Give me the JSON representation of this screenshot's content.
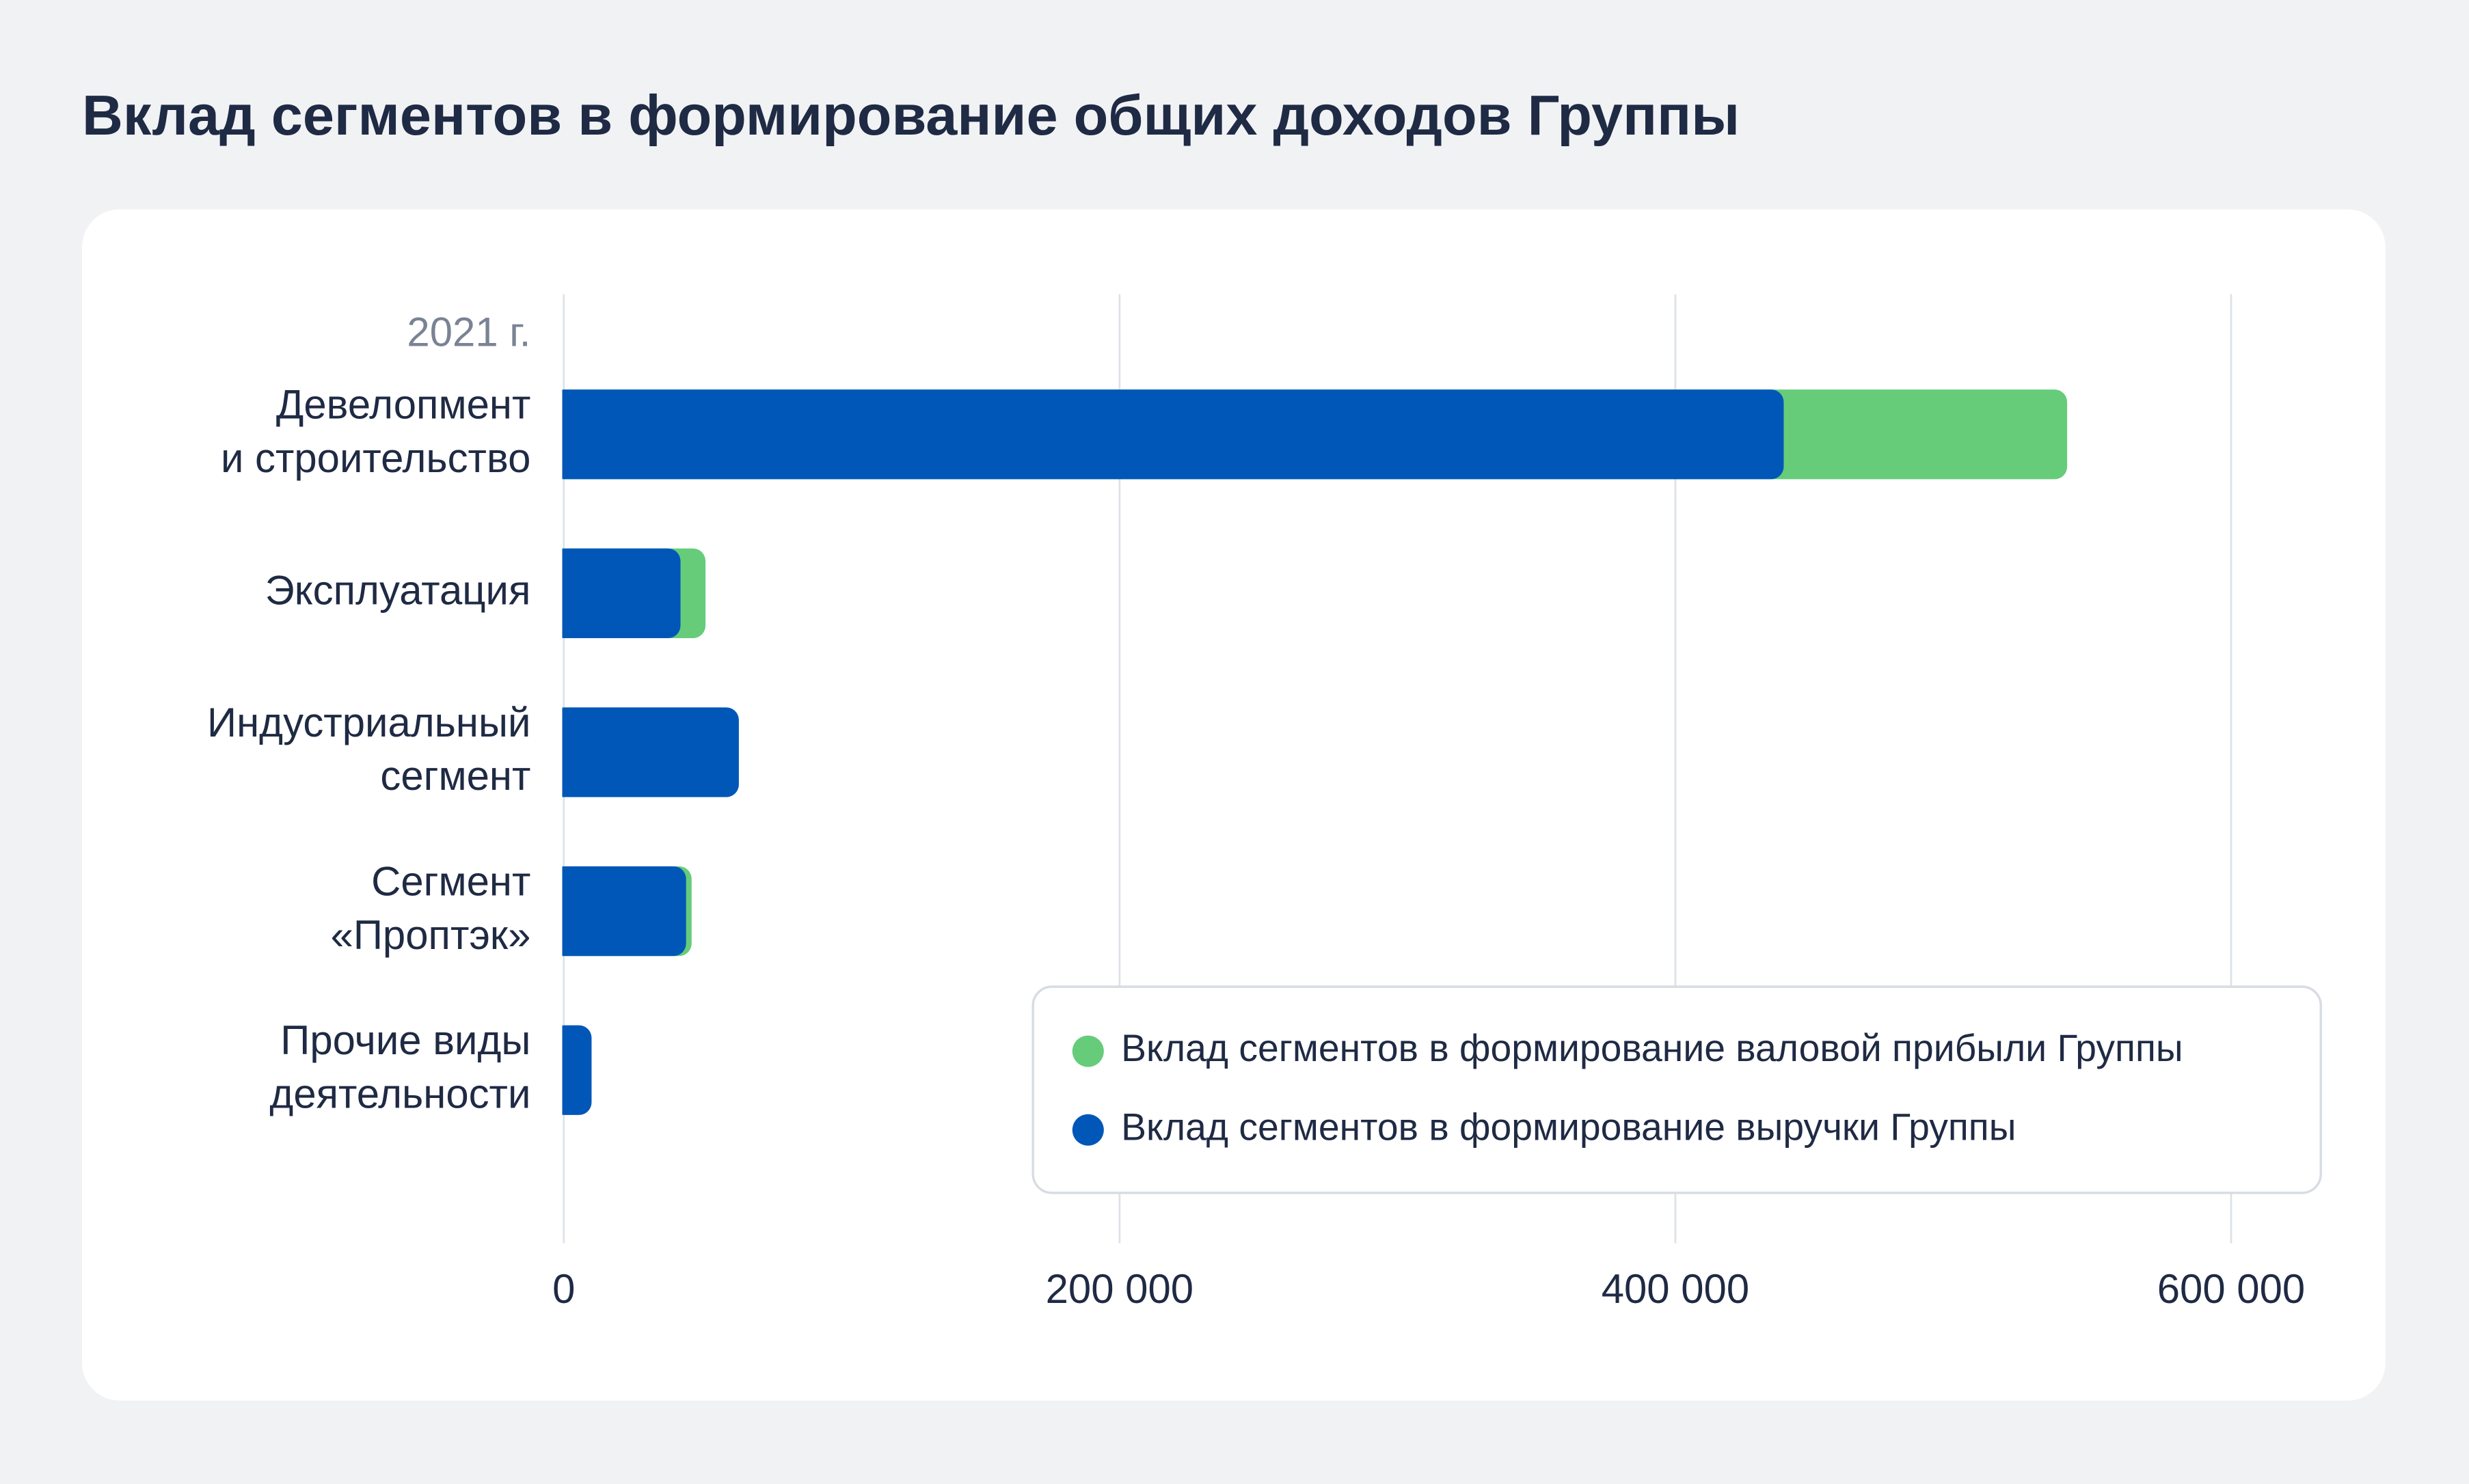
{
  "chart_data": {
    "type": "bar",
    "title": "Вклад сегментов в формирование общих доходов Группы",
    "subtitle": "2021 г.",
    "categories": [
      "Девелопмент\nи строительство",
      "Эксплуатация",
      "Индустриальный\nсегмент",
      "Сегмент\n«Проптэк»",
      "Прочие виды\nдеятельности"
    ],
    "series": [
      {
        "name": "Вклад сегментов в формирование валовой прибыли Группы",
        "color": "#66cc7a",
        "values": [
          541000,
          51000,
          null,
          46000,
          null
        ]
      },
      {
        "name": "Вклад сегментов в формирование выручки Группы",
        "color": "#0057b8",
        "values": [
          439000,
          42000,
          63000,
          44000,
          10000
        ]
      }
    ],
    "xlim": [
      0,
      600000
    ],
    "xticks": [
      0,
      {
        "value": 200000,
        "label": "200 000"
      },
      {
        "value": 400000,
        "label": "400 000"
      },
      {
        "value": 600000,
        "label": "600 000"
      }
    ],
    "grid": true,
    "legend": "bottom-right"
  }
}
